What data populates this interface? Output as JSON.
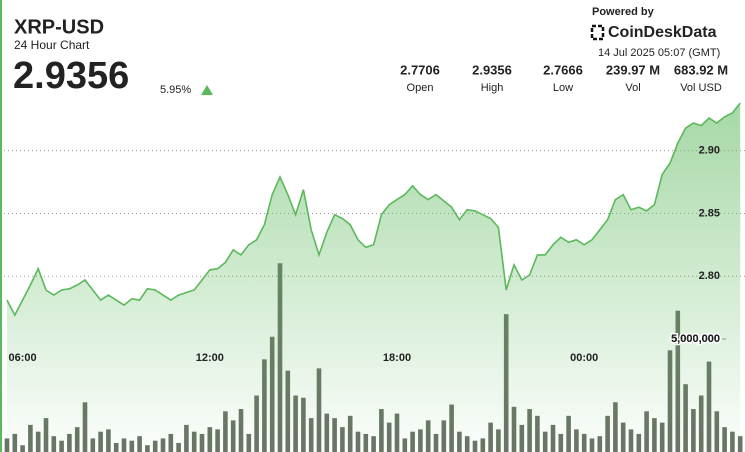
{
  "chart_data": {
    "type": "line",
    "title": "XRP-USD",
    "subtitle": "24 Hour Chart",
    "price": "2.9356",
    "change": "5.95%",
    "stats": [
      {
        "value": "2.7706",
        "label": "Open"
      },
      {
        "value": "2.9356",
        "label": "High"
      },
      {
        "value": "2.7666",
        "label": "Low"
      },
      {
        "value": "239.97 M",
        "label": "Vol"
      },
      {
        "value": "683.92 M",
        "label": "Vol USD"
      }
    ],
    "powered_by": "Powered by",
    "brand": "CoinDeskData",
    "timestamp": "14 Jul 2025 05:07 (GMT)",
    "categories": [
      null,
      null,
      "06:00",
      null,
      null,
      null,
      null,
      null,
      null,
      null,
      null,
      null,
      null,
      null,
      null,
      null,
      null,
      null,
      null,
      null,
      null,
      null,
      null,
      null,
      null,
      null,
      "12:00",
      null,
      null,
      null,
      null,
      null,
      null,
      null,
      null,
      null,
      null,
      null,
      null,
      null,
      null,
      null,
      null,
      null,
      null,
      null,
      null,
      null,
      null,
      null,
      "18:00",
      null,
      null,
      null,
      null,
      null,
      null,
      null,
      null,
      null,
      null,
      null,
      null,
      null,
      null,
      null,
      null,
      null,
      null,
      null,
      null,
      null,
      null,
      null,
      "00:00",
      null,
      null,
      null,
      null,
      null,
      null,
      null,
      null,
      null,
      null,
      null,
      null,
      null,
      null,
      null,
      null,
      null,
      null,
      null,
      null
    ],
    "series": [
      {
        "type": "area",
        "color": "#5cb85c",
        "values": [
          2.781,
          2.769,
          2.781,
          2.793,
          2.806,
          2.789,
          2.785,
          2.789,
          2.79,
          2.793,
          2.797,
          2.789,
          2.781,
          2.785,
          2.781,
          2.777,
          2.782,
          2.781,
          2.79,
          2.789,
          2.785,
          2.781,
          2.785,
          2.787,
          2.789,
          2.797,
          2.805,
          2.806,
          2.811,
          2.821,
          2.817,
          2.825,
          2.829,
          2.841,
          2.865,
          2.879,
          2.865,
          2.849,
          2.869,
          2.837,
          2.817,
          2.835,
          2.849,
          2.846,
          2.841,
          2.829,
          2.823,
          2.825,
          2.849,
          2.857,
          2.861,
          2.865,
          2.872,
          2.865,
          2.861,
          2.865,
          2.86,
          2.855,
          2.845,
          2.853,
          2.852,
          2.849,
          2.846,
          2.839,
          2.789,
          2.809,
          2.797,
          2.801,
          2.817,
          2.817,
          2.825,
          2.831,
          2.827,
          2.829,
          2.825,
          2.829,
          2.837,
          2.845,
          2.861,
          2.865,
          2.853,
          2.855,
          2.852,
          2.857,
          2.881,
          2.89,
          2.906,
          2.918,
          2.922,
          2.92,
          2.926,
          2.922,
          2.927,
          2.93,
          2.938
        ]
      },
      {
        "type": "bar",
        "axis": "y2",
        "color": "#4f5a4a",
        "values": [
          600000,
          800000,
          300000,
          1200000,
          900000,
          1500000,
          700000,
          500000,
          800000,
          1100000,
          2200000,
          600000,
          900000,
          1000000,
          400000,
          600000,
          500000,
          700000,
          300000,
          500000,
          600000,
          800000,
          400000,
          1200000,
          900000,
          800000,
          1100000,
          1000000,
          1800000,
          1400000,
          1900000,
          800000,
          2500000,
          4100000,
          5100000,
          8350000,
          3600000,
          2500000,
          2400000,
          1500000,
          3700000,
          1700000,
          1500000,
          1100000,
          1600000,
          900000,
          800000,
          700000,
          1900000,
          1300000,
          1700000,
          600000,
          900000,
          1000000,
          1400000,
          800000,
          1400000,
          2100000,
          900000,
          700000,
          500000,
          600000,
          1300000,
          1000000,
          6100000,
          2000000,
          1200000,
          1900000,
          1600000,
          900000,
          1200000,
          800000,
          1600000,
          1000000,
          800000,
          600000,
          700000,
          1600000,
          2200000,
          1300000,
          1000000,
          800000,
          1800000,
          1500000,
          1300000,
          4500000,
          6250000,
          3000000,
          1900000,
          2500000,
          4000000,
          1800000,
          1100000,
          900000,
          700000
        ]
      }
    ],
    "ylim": [
      2.66,
      3.02
    ],
    "yticks": [
      {
        "value": 2.8,
        "label": "2.80"
      },
      2.85,
      {
        "value": 2.9,
        "label": "2.90"
      }
    ],
    "y2lim": [
      0,
      20000000
    ],
    "y2ticks": [
      {
        "value": 5000000,
        "label": "5,000,000"
      }
    ],
    "grid": true
  }
}
